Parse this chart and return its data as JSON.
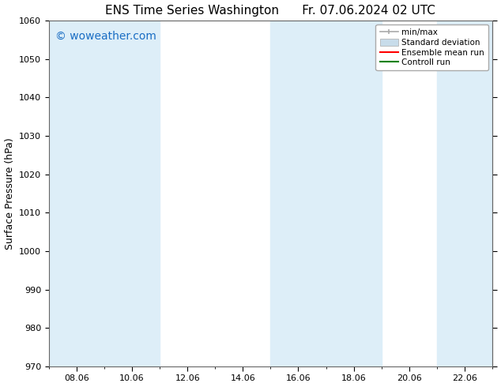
{
  "title": "ENS Time Series Washington      Fr. 07.06.2024 02 UTC",
  "ylabel": "Surface Pressure (hPa)",
  "ylim": [
    970,
    1060
  ],
  "yticks": [
    970,
    980,
    990,
    1000,
    1010,
    1020,
    1030,
    1040,
    1050,
    1060
  ],
  "xtick_labels": [
    "08.06",
    "10.06",
    "12.06",
    "14.06",
    "16.06",
    "18.06",
    "20.06",
    "22.06"
  ],
  "shaded_bands": [
    {
      "x_start": 0.0,
      "x_end": 2.0
    },
    {
      "x_start": 2.0,
      "x_end": 4.0
    },
    {
      "x_start": 8.0,
      "x_end": 10.0
    },
    {
      "x_start": 10.0,
      "x_end": 12.0
    },
    {
      "x_start": 14.0,
      "x_end": 16.0
    }
  ],
  "shade_color": "#ddeef8",
  "watermark": "© woweather.com",
  "watermark_color": "#1a6ec4",
  "watermark_fontsize": 10,
  "legend_labels": [
    "min/max",
    "Standard deviation",
    "Ensemble mean run",
    "Controll run"
  ],
  "background_color": "#ffffff",
  "plot_bg_color": "#ffffff",
  "title_fontsize": 11,
  "tick_fontsize": 8,
  "ylabel_fontsize": 9,
  "figsize": [
    6.34,
    4.9
  ],
  "dpi": 100,
  "xlim": [
    0,
    16
  ],
  "num_xticks": 8,
  "xtick_step": 2
}
